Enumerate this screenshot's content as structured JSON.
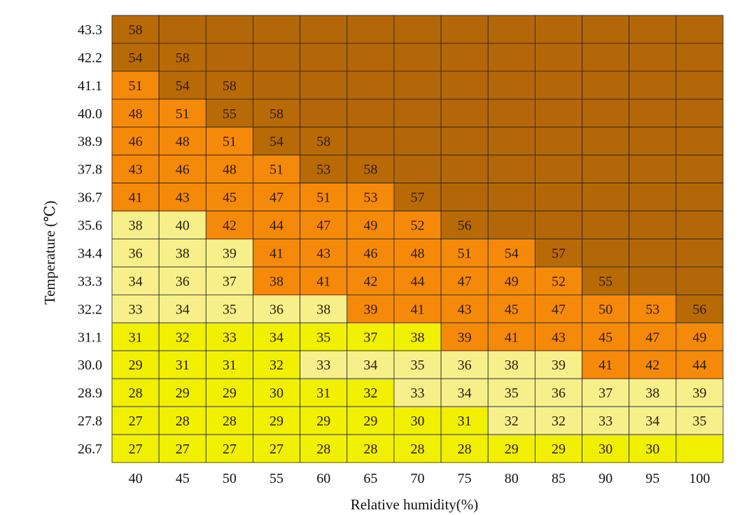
{
  "chart_data": {
    "type": "heatmap",
    "xlabel": "Relative humidity(%)",
    "ylabel": "Temperature (℃)",
    "x": [
      "40",
      "45",
      "50",
      "55",
      "60",
      "65",
      "70",
      "75",
      "80",
      "85",
      "90",
      "95",
      "100"
    ],
    "y": [
      "43.3",
      "42.2",
      "41.1",
      "40.0",
      "38.9",
      "37.8",
      "36.7",
      "35.6",
      "34.4",
      "33.3",
      "32.2",
      "31.1",
      "30.0",
      "28.9",
      "27.8",
      "26.7"
    ],
    "values": [
      [
        58,
        null,
        null,
        null,
        null,
        null,
        null,
        null,
        null,
        null,
        null,
        null,
        null
      ],
      [
        54,
        58,
        null,
        null,
        null,
        null,
        null,
        null,
        null,
        null,
        null,
        null,
        null
      ],
      [
        51,
        54,
        58,
        null,
        null,
        null,
        null,
        null,
        null,
        null,
        null,
        null,
        null
      ],
      [
        48,
        51,
        55,
        58,
        null,
        null,
        null,
        null,
        null,
        null,
        null,
        null,
        null
      ],
      [
        46,
        48,
        51,
        54,
        58,
        null,
        null,
        null,
        null,
        null,
        null,
        null,
        null
      ],
      [
        43,
        46,
        48,
        51,
        53,
        58,
        null,
        null,
        null,
        null,
        null,
        null,
        null
      ],
      [
        41,
        43,
        45,
        47,
        51,
        53,
        57,
        null,
        null,
        null,
        null,
        null,
        null
      ],
      [
        38,
        40,
        42,
        44,
        47,
        49,
        52,
        56,
        null,
        null,
        null,
        null,
        null
      ],
      [
        36,
        38,
        39,
        41,
        43,
        46,
        48,
        51,
        54,
        57,
        null,
        null,
        null
      ],
      [
        34,
        36,
        37,
        38,
        41,
        42,
        44,
        47,
        49,
        52,
        55,
        null,
        null
      ],
      [
        33,
        34,
        35,
        36,
        38,
        39,
        41,
        43,
        45,
        47,
        50,
        53,
        56
      ],
      [
        31,
        32,
        33,
        34,
        35,
        37,
        38,
        39,
        41,
        43,
        45,
        47,
        49
      ],
      [
        29,
        31,
        31,
        32,
        33,
        34,
        35,
        36,
        38,
        39,
        41,
        42,
        44
      ],
      [
        28,
        29,
        29,
        30,
        31,
        32,
        33,
        34,
        35,
        36,
        37,
        38,
        39
      ],
      [
        27,
        28,
        28,
        29,
        29,
        29,
        30,
        31,
        32,
        32,
        33,
        34,
        35
      ],
      [
        27,
        27,
        27,
        27,
        28,
        28,
        28,
        28,
        29,
        29,
        30,
        30,
        null
      ]
    ],
    "levels": [
      [
        4,
        0,
        0,
        0,
        0,
        0,
        0,
        0,
        0,
        0,
        0,
        0,
        0
      ],
      [
        4,
        4,
        0,
        0,
        0,
        0,
        0,
        0,
        0,
        0,
        0,
        0,
        0
      ],
      [
        3,
        4,
        4,
        0,
        0,
        0,
        0,
        0,
        0,
        0,
        0,
        0,
        0
      ],
      [
        3,
        3,
        4,
        4,
        0,
        0,
        0,
        0,
        0,
        0,
        0,
        0,
        0
      ],
      [
        3,
        3,
        3,
        4,
        4,
        0,
        0,
        0,
        0,
        0,
        0,
        0,
        0
      ],
      [
        3,
        3,
        3,
        3,
        4,
        4,
        0,
        0,
        0,
        0,
        0,
        0,
        0
      ],
      [
        3,
        3,
        3,
        3,
        3,
        3,
        4,
        0,
        0,
        0,
        0,
        0,
        0
      ],
      [
        2,
        2,
        3,
        3,
        3,
        3,
        3,
        4,
        0,
        0,
        0,
        0,
        0
      ],
      [
        2,
        2,
        2,
        3,
        3,
        3,
        3,
        3,
        3,
        4,
        0,
        0,
        0
      ],
      [
        2,
        2,
        2,
        3,
        3,
        3,
        3,
        3,
        3,
        3,
        4,
        0,
        0
      ],
      [
        2,
        2,
        2,
        2,
        2,
        3,
        3,
        3,
        3,
        3,
        3,
        3,
        4
      ],
      [
        1,
        1,
        1,
        1,
        1,
        1,
        1,
        3,
        3,
        3,
        3,
        3,
        3
      ],
      [
        1,
        1,
        1,
        1,
        2,
        2,
        2,
        2,
        2,
        2,
        3,
        3,
        3
      ],
      [
        1,
        1,
        1,
        1,
        1,
        1,
        2,
        2,
        2,
        2,
        2,
        2,
        2
      ],
      [
        1,
        1,
        1,
        1,
        1,
        1,
        1,
        1,
        2,
        2,
        2,
        2,
        2
      ],
      [
        1,
        1,
        1,
        1,
        1,
        1,
        1,
        1,
        1,
        1,
        1,
        1,
        1
      ]
    ],
    "colors": {
      "level1": "#f0f000",
      "level2": "#f7f08a",
      "level3": "#f5890a",
      "level4": "#b86a06",
      "level0": "#b46708",
      "grid": "#222222"
    },
    "grid": true
  }
}
